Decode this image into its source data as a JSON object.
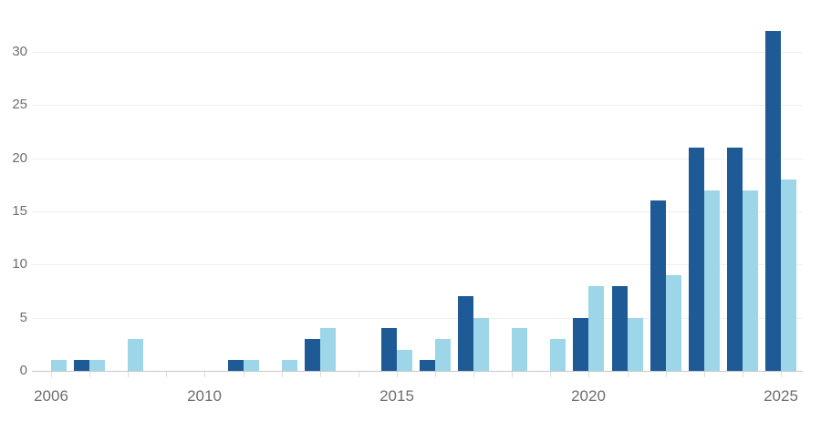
{
  "chart_data": {
    "type": "bar",
    "subtype": "grouped",
    "title": "",
    "categories": [
      "2006",
      "2007",
      "2008",
      "2009",
      "2010",
      "2011",
      "2012",
      "2013",
      "2014",
      "2015",
      "2016",
      "2017",
      "2018",
      "2019",
      "2020",
      "2021",
      "2022",
      "2023",
      "2024",
      "2025"
    ],
    "series": [
      {
        "name": "dark-blue-series",
        "color": "#1e5a96",
        "values": [
          0,
          1,
          0,
          0,
          0,
          1,
          0,
          3,
          0,
          4,
          1,
          7,
          0,
          0,
          5,
          8,
          16,
          21,
          21,
          32
        ]
      },
      {
        "name": "light-blue-series",
        "color": "#9dd6e8",
        "values": [
          1,
          1,
          3,
          0,
          0,
          1,
          1,
          4,
          0,
          2,
          3,
          5,
          4,
          3,
          8,
          5,
          9,
          17,
          17,
          18
        ]
      }
    ],
    "xlabel": "",
    "ylabel": "",
    "y_ticks": [
      0,
      5,
      10,
      15,
      20,
      25,
      30
    ],
    "ylim": [
      0,
      32
    ],
    "x_tick_labels_shown": [
      "2006",
      "2010",
      "2015",
      "2020",
      "2025"
    ],
    "grid": "horizontal",
    "legend": "none",
    "colors": {
      "gridline": "#efefef",
      "axis_line": "#c8c8c8",
      "tick_mark": "#dcdcdc",
      "label_text": "#6e6e6e",
      "background": "#ffffff"
    }
  }
}
